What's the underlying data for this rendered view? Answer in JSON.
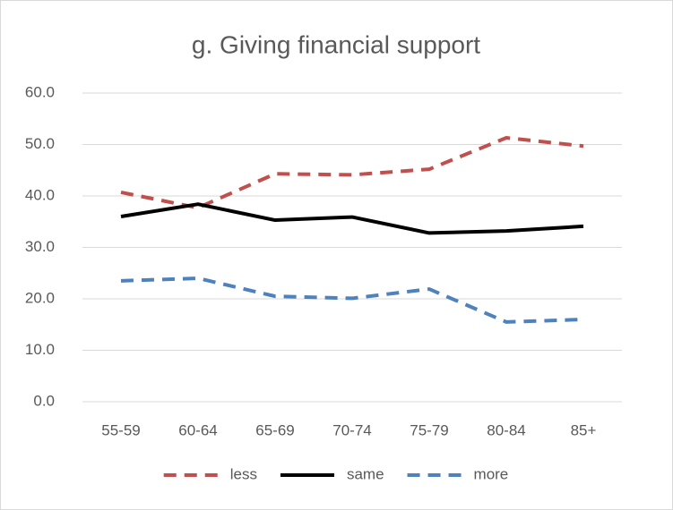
{
  "chart_data": {
    "type": "line",
    "title": "g. Giving financial support",
    "categories": [
      "55-59",
      "60-64",
      "65-69",
      "70-74",
      "75-79",
      "80-84",
      "85+"
    ],
    "series": [
      {
        "name": "less",
        "color": "#c0504d",
        "dash": "dashed",
        "values": [
          40.7,
          37.7,
          44.3,
          44.1,
          45.2,
          51.3,
          49.7
        ]
      },
      {
        "name": "same",
        "color": "#000000",
        "dash": "solid",
        "values": [
          36.0,
          38.4,
          35.3,
          35.9,
          32.8,
          33.2,
          34.1
        ]
      },
      {
        "name": "more",
        "color": "#4f81bd",
        "dash": "dashed",
        "values": [
          23.5,
          24.0,
          20.5,
          20.1,
          21.9,
          15.5,
          16.0
        ]
      }
    ],
    "ylim": [
      0,
      60
    ],
    "yticks": [
      {
        "value": 0,
        "label": "0.0"
      },
      {
        "value": 10,
        "label": "10.0"
      },
      {
        "value": 20,
        "label": "20.0"
      },
      {
        "value": 30,
        "label": "30.0"
      },
      {
        "value": 40,
        "label": "40.0"
      },
      {
        "value": 50,
        "label": "50.0"
      },
      {
        "value": 60,
        "label": "60.0"
      }
    ],
    "grid": true,
    "legend": "bottom"
  }
}
